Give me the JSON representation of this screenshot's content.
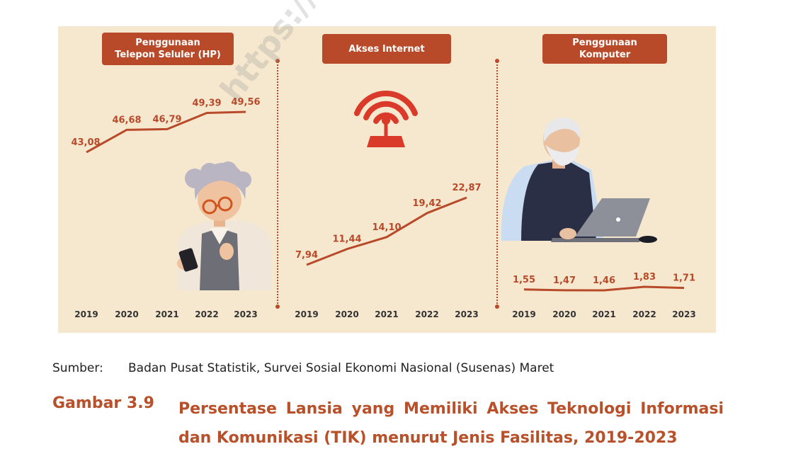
{
  "panels": [
    {
      "title": "Penggunaan\nTelepon Seluler (HP)"
    },
    {
      "title": "Akses Internet"
    },
    {
      "title": "Penggunaan\nKomputer"
    }
  ],
  "chart_data": [
    {
      "type": "line",
      "title": "Penggunaan Telepon Seluler (HP)",
      "x": [
        "2019",
        "2020",
        "2021",
        "2022",
        "2023"
      ],
      "values": [
        43.08,
        46.68,
        46.79,
        49.39,
        49.56
      ],
      "labels": [
        "43,08",
        "46,68",
        "46,79",
        "49,39",
        "49,56"
      ]
    },
    {
      "type": "line",
      "title": "Akses Internet",
      "x": [
        "2019",
        "2020",
        "2021",
        "2022",
        "2023"
      ],
      "values": [
        7.94,
        11.44,
        14.1,
        19.42,
        22.87
      ],
      "labels": [
        "7,94",
        "11,44",
        "14,10",
        "19,42",
        "22,87"
      ]
    },
    {
      "type": "line",
      "title": "Penggunaan Komputer",
      "x": [
        "2019",
        "2020",
        "2021",
        "2022",
        "2023"
      ],
      "values": [
        1.55,
        1.47,
        1.46,
        1.83,
        1.71
      ],
      "labels": [
        "1,55",
        "1,47",
        "1,46",
        "1,83",
        "1,71"
      ]
    }
  ],
  "colors": {
    "line": "#b84a2a",
    "panel_bg": "#f6e8cf",
    "caption": "#b8502a"
  },
  "icons": [
    "elderly-woman-phone-icon",
    "wifi-router-icon",
    "elderly-man-laptop-icon"
  ],
  "watermark": "https://www.b",
  "source": {
    "label": "Sumber:",
    "text": "Badan Pusat Statistik, Survei Sosial Ekonomi Nasional (Susenas) Maret"
  },
  "caption": {
    "number": "Gambar 3.9",
    "text": "Persentase Lansia yang Memiliki Akses Teknologi Informasi dan Komunikasi (TIK) menurut Jenis Fasilitas, 2019-2023"
  }
}
